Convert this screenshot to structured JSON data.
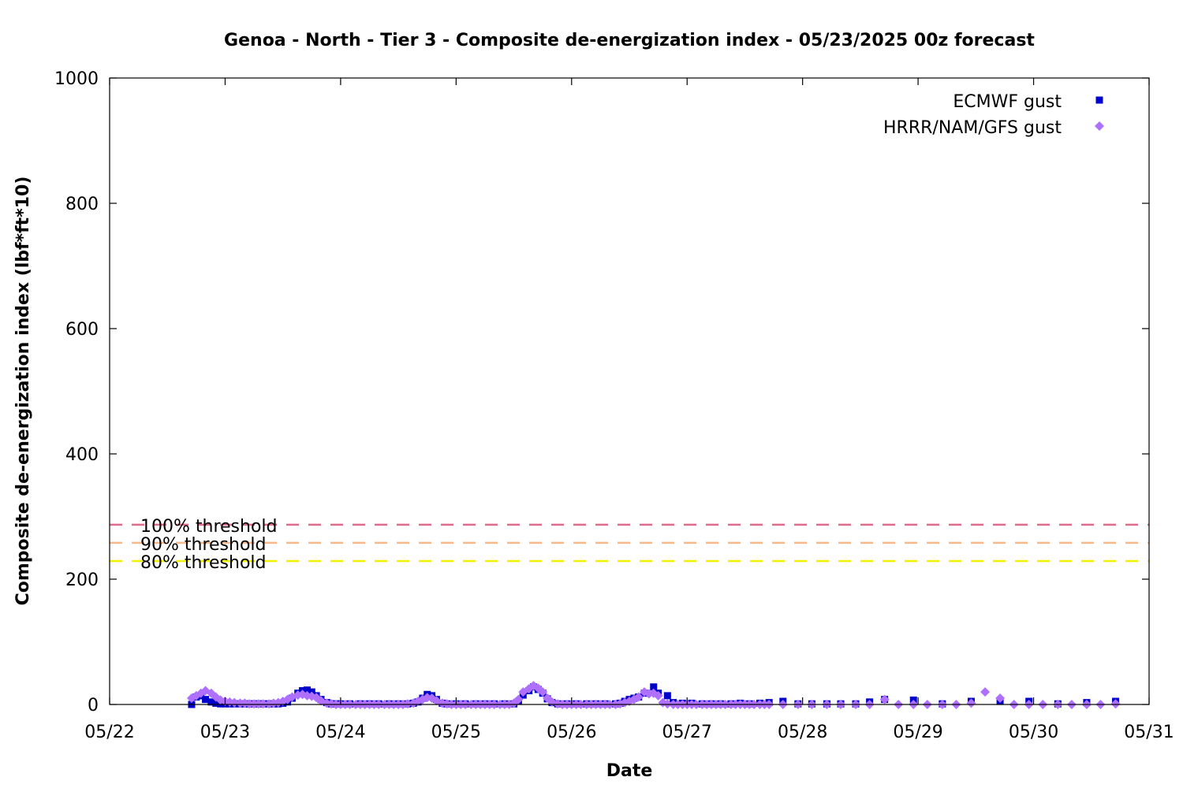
{
  "chart_data": {
    "type": "scatter",
    "title": "Genoa - North - Tier 3 - Composite de-energization index - 05/23/2025 00z forecast",
    "xlabel": "Date",
    "ylabel": "Composite de-energization index (lbf*ft*10)",
    "x_unit": "day of May 2025",
    "xlim": [
      22,
      31
    ],
    "ylim": [
      0,
      1000
    ],
    "x_ticks": [
      22,
      23,
      24,
      25,
      26,
      27,
      28,
      29,
      30,
      31
    ],
    "x_tick_labels": [
      "05/22",
      "05/23",
      "05/24",
      "05/25",
      "05/26",
      "05/27",
      "05/28",
      "05/29",
      "05/30",
      "05/31"
    ],
    "y_ticks": [
      0,
      200,
      400,
      600,
      800,
      1000
    ],
    "y_tick_labels": [
      "0",
      "200",
      "400",
      "600",
      "800",
      "1000"
    ],
    "grid": false,
    "legend_position": "top-right",
    "thresholds": [
      {
        "label": "100% threshold",
        "value": 287,
        "color": "#e06c8c"
      },
      {
        "label": "90% threshold",
        "value": 258,
        "color": "#f8b98a"
      },
      {
        "label": "80% threshold",
        "value": 229,
        "color": "#f0f000"
      }
    ],
    "series": [
      {
        "name": "ECMWF gust",
        "marker": "square",
        "color": "#0000cc",
        "points": [
          [
            22.71,
            0
          ],
          [
            22.75,
            12
          ],
          [
            22.79,
            14
          ],
          [
            22.83,
            8
          ],
          [
            22.88,
            4
          ],
          [
            22.92,
            2
          ],
          [
            22.96,
            1
          ],
          [
            23.0,
            1
          ],
          [
            23.04,
            1
          ],
          [
            23.08,
            1
          ],
          [
            23.13,
            1
          ],
          [
            23.17,
            1
          ],
          [
            23.21,
            1
          ],
          [
            23.25,
            1
          ],
          [
            23.29,
            1
          ],
          [
            23.33,
            1
          ],
          [
            23.38,
            1
          ],
          [
            23.42,
            1
          ],
          [
            23.46,
            1
          ],
          [
            23.5,
            2
          ],
          [
            23.54,
            4
          ],
          [
            23.58,
            10
          ],
          [
            23.63,
            18
          ],
          [
            23.67,
            22
          ],
          [
            23.71,
            23
          ],
          [
            23.75,
            20
          ],
          [
            23.79,
            14
          ],
          [
            23.83,
            8
          ],
          [
            23.88,
            3
          ],
          [
            23.92,
            1
          ],
          [
            23.96,
            1
          ],
          [
            24.0,
            1
          ],
          [
            24.08,
            1
          ],
          [
            24.17,
            1
          ],
          [
            24.25,
            1
          ],
          [
            24.33,
            1
          ],
          [
            24.42,
            1
          ],
          [
            24.5,
            1
          ],
          [
            24.58,
            1
          ],
          [
            24.63,
            2
          ],
          [
            24.67,
            4
          ],
          [
            24.71,
            10
          ],
          [
            24.75,
            16
          ],
          [
            24.79,
            14
          ],
          [
            24.83,
            8
          ],
          [
            24.88,
            2
          ],
          [
            24.92,
            1
          ],
          [
            25.0,
            1
          ],
          [
            25.08,
            1
          ],
          [
            25.17,
            1
          ],
          [
            25.25,
            1
          ],
          [
            25.33,
            1
          ],
          [
            25.42,
            1
          ],
          [
            25.5,
            1
          ],
          [
            25.54,
            5
          ],
          [
            25.58,
            15
          ],
          [
            25.63,
            22
          ],
          [
            25.67,
            28
          ],
          [
            25.71,
            24
          ],
          [
            25.75,
            18
          ],
          [
            25.79,
            9
          ],
          [
            25.83,
            3
          ],
          [
            25.88,
            1
          ],
          [
            25.96,
            1
          ],
          [
            26.04,
            1
          ],
          [
            26.13,
            1
          ],
          [
            26.21,
            1
          ],
          [
            26.29,
            1
          ],
          [
            26.38,
            1
          ],
          [
            26.42,
            2
          ],
          [
            26.46,
            5
          ],
          [
            26.5,
            8
          ],
          [
            26.54,
            10
          ],
          [
            26.58,
            12
          ],
          [
            26.63,
            18
          ],
          [
            26.71,
            28
          ],
          [
            26.75,
            18
          ],
          [
            26.83,
            14
          ],
          [
            26.88,
            3
          ],
          [
            26.96,
            2
          ],
          [
            27.04,
            2
          ],
          [
            27.13,
            1
          ],
          [
            27.21,
            1
          ],
          [
            27.29,
            1
          ],
          [
            27.38,
            1
          ],
          [
            27.46,
            2
          ],
          [
            27.54,
            1
          ],
          [
            27.63,
            2
          ],
          [
            27.71,
            3
          ],
          [
            27.83,
            5
          ],
          [
            27.96,
            1
          ],
          [
            28.08,
            1
          ],
          [
            28.21,
            1
          ],
          [
            28.33,
            1
          ],
          [
            28.46,
            1
          ],
          [
            28.58,
            4
          ],
          [
            28.71,
            8
          ],
          [
            28.96,
            7
          ],
          [
            29.21,
            1
          ],
          [
            29.46,
            5
          ],
          [
            29.71,
            5
          ],
          [
            29.96,
            5
          ],
          [
            30.21,
            1
          ],
          [
            30.46,
            3
          ],
          [
            30.71,
            5
          ]
        ]
      },
      {
        "name": "HRRR/NAM/GFS gust",
        "marker": "diamond",
        "color": "#b070ff",
        "points": [
          [
            22.71,
            10
          ],
          [
            22.75,
            14
          ],
          [
            22.79,
            18
          ],
          [
            22.83,
            22
          ],
          [
            22.88,
            18
          ],
          [
            22.92,
            12
          ],
          [
            22.96,
            7
          ],
          [
            23.0,
            5
          ],
          [
            23.04,
            4
          ],
          [
            23.08,
            3
          ],
          [
            23.13,
            2
          ],
          [
            23.17,
            2
          ],
          [
            23.21,
            1
          ],
          [
            23.25,
            1
          ],
          [
            23.29,
            1
          ],
          [
            23.33,
            1
          ],
          [
            23.38,
            1
          ],
          [
            23.42,
            2
          ],
          [
            23.46,
            3
          ],
          [
            23.5,
            5
          ],
          [
            23.54,
            8
          ],
          [
            23.58,
            12
          ],
          [
            23.63,
            15
          ],
          [
            23.67,
            16
          ],
          [
            23.71,
            14
          ],
          [
            23.75,
            13
          ],
          [
            23.79,
            11
          ],
          [
            23.83,
            6
          ],
          [
            23.88,
            2
          ],
          [
            23.92,
            1
          ],
          [
            23.96,
            0
          ],
          [
            24.0,
            0
          ],
          [
            24.04,
            0
          ],
          [
            24.08,
            0
          ],
          [
            24.13,
            0
          ],
          [
            24.17,
            0
          ],
          [
            24.21,
            0
          ],
          [
            24.25,
            0
          ],
          [
            24.29,
            0
          ],
          [
            24.33,
            0
          ],
          [
            24.38,
            0
          ],
          [
            24.42,
            0
          ],
          [
            24.46,
            0
          ],
          [
            24.5,
            0
          ],
          [
            24.54,
            0
          ],
          [
            24.58,
            1
          ],
          [
            24.63,
            2
          ],
          [
            24.67,
            5
          ],
          [
            24.71,
            8
          ],
          [
            24.75,
            11
          ],
          [
            24.79,
            10
          ],
          [
            24.83,
            6
          ],
          [
            24.88,
            2
          ],
          [
            24.92,
            1
          ],
          [
            24.96,
            0
          ],
          [
            25.0,
            0
          ],
          [
            25.04,
            0
          ],
          [
            25.08,
            0
          ],
          [
            25.13,
            0
          ],
          [
            25.17,
            0
          ],
          [
            25.21,
            0
          ],
          [
            25.25,
            0
          ],
          [
            25.29,
            0
          ],
          [
            25.33,
            0
          ],
          [
            25.38,
            0
          ],
          [
            25.42,
            0
          ],
          [
            25.46,
            0
          ],
          [
            25.5,
            2
          ],
          [
            25.54,
            8
          ],
          [
            25.58,
            20
          ],
          [
            25.63,
            25
          ],
          [
            25.67,
            30
          ],
          [
            25.71,
            26
          ],
          [
            25.75,
            20
          ],
          [
            25.79,
            10
          ],
          [
            25.83,
            4
          ],
          [
            25.88,
            1
          ],
          [
            25.92,
            0
          ],
          [
            25.96,
            0
          ],
          [
            26.0,
            0
          ],
          [
            26.04,
            0
          ],
          [
            26.08,
            0
          ],
          [
            26.13,
            0
          ],
          [
            26.17,
            0
          ],
          [
            26.21,
            0
          ],
          [
            26.25,
            0
          ],
          [
            26.29,
            0
          ],
          [
            26.33,
            0
          ],
          [
            26.38,
            0
          ],
          [
            26.42,
            1
          ],
          [
            26.46,
            3
          ],
          [
            26.5,
            5
          ],
          [
            26.54,
            8
          ],
          [
            26.58,
            12
          ],
          [
            26.63,
            20
          ],
          [
            26.67,
            17
          ],
          [
            26.71,
            18
          ],
          [
            26.75,
            14
          ],
          [
            26.79,
            3
          ],
          [
            26.83,
            1
          ],
          [
            26.88,
            0
          ],
          [
            26.92,
            0
          ],
          [
            26.96,
            0
          ],
          [
            27.0,
            0
          ],
          [
            27.04,
            0
          ],
          [
            27.08,
            0
          ],
          [
            27.13,
            0
          ],
          [
            27.17,
            0
          ],
          [
            27.21,
            0
          ],
          [
            27.25,
            0
          ],
          [
            27.29,
            0
          ],
          [
            27.33,
            0
          ],
          [
            27.38,
            0
          ],
          [
            27.42,
            0
          ],
          [
            27.46,
            0
          ],
          [
            27.5,
            0
          ],
          [
            27.54,
            0
          ],
          [
            27.58,
            0
          ],
          [
            27.63,
            0
          ],
          [
            27.67,
            0
          ],
          [
            27.71,
            0
          ],
          [
            27.83,
            0
          ],
          [
            27.96,
            0
          ],
          [
            28.08,
            0
          ],
          [
            28.21,
            0
          ],
          [
            28.33,
            0
          ],
          [
            28.46,
            0
          ],
          [
            28.58,
            0
          ],
          [
            28.71,
            8
          ],
          [
            28.83,
            0
          ],
          [
            28.96,
            0
          ],
          [
            29.08,
            0
          ],
          [
            29.21,
            0
          ],
          [
            29.33,
            0
          ],
          [
            29.46,
            2
          ],
          [
            29.58,
            20
          ],
          [
            29.71,
            10
          ],
          [
            29.83,
            0
          ],
          [
            29.96,
            0
          ],
          [
            30.08,
            0
          ],
          [
            30.21,
            0
          ],
          [
            30.33,
            0
          ],
          [
            30.46,
            0
          ],
          [
            30.58,
            0
          ],
          [
            30.71,
            1
          ]
        ]
      }
    ]
  }
}
